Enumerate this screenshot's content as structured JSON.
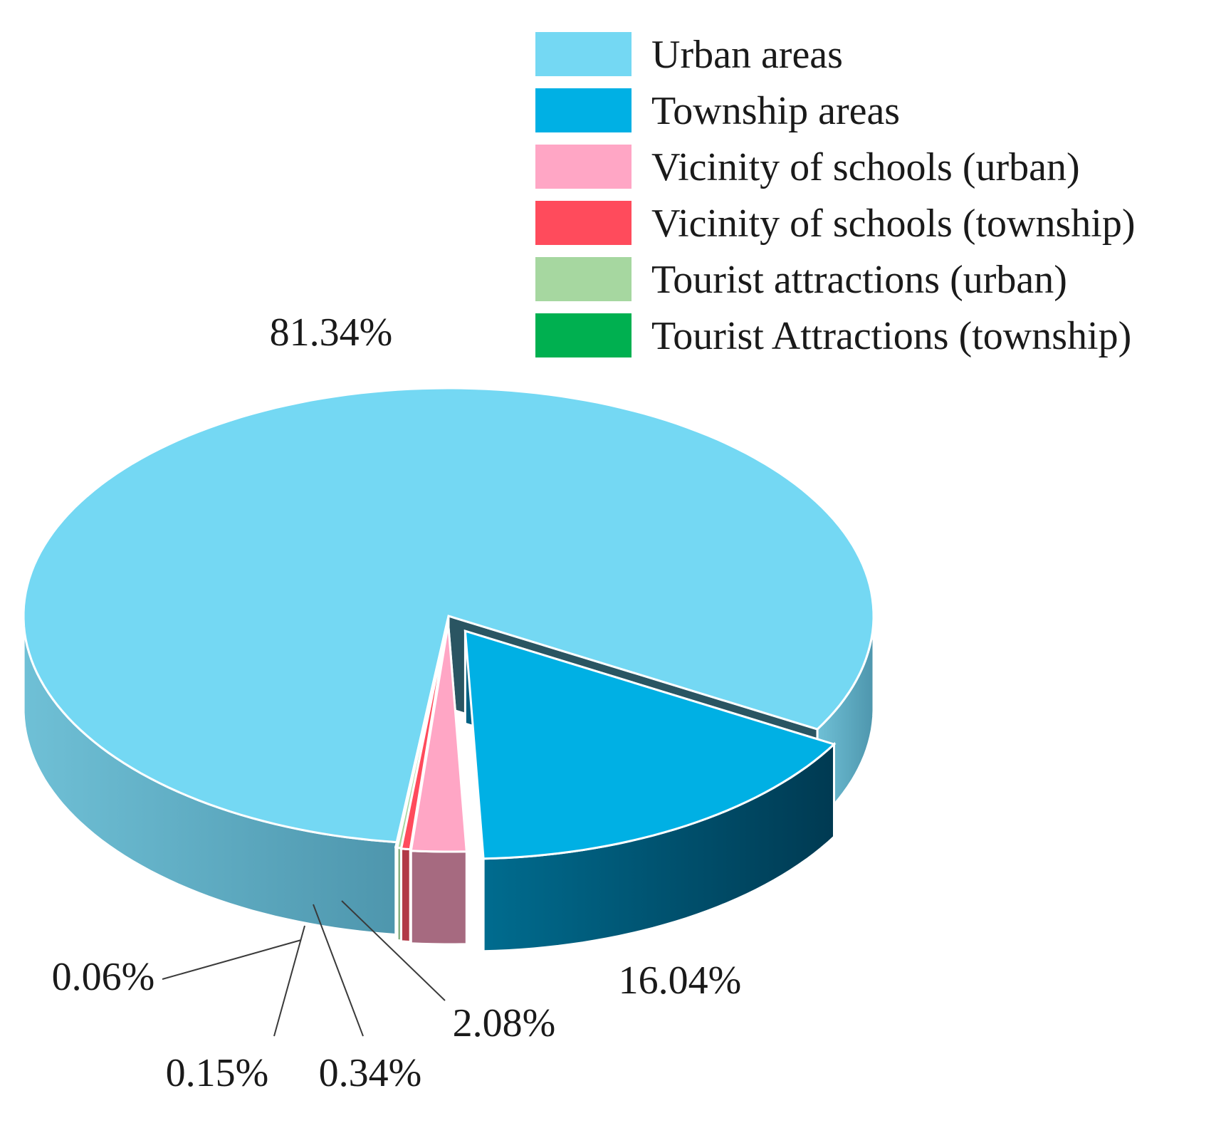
{
  "chart_data": {
    "type": "pie",
    "style": "3d-exploded",
    "categories": [
      "Urban areas",
      "Township areas",
      "Vicinity of schools (urban)",
      "Vicinity of schools (township)",
      "Tourist attractions (urban)",
      "Tourist Attractions (township)"
    ],
    "values": [
      81.34,
      16.04,
      2.08,
      0.34,
      0.15,
      0.06
    ],
    "value_labels": [
      "81.34%",
      "16.04%",
      "2.08%",
      "0.34%",
      "0.15%",
      "0.06%"
    ],
    "colors": [
      "#74d8f3",
      "#00b0e4",
      "#ffa6c5",
      "#ff4b5c",
      "#a6d7a0",
      "#00b050"
    ],
    "side_colors": [
      "#5aaac2",
      "#006284",
      "#a66a80",
      "#b23a47",
      "#86b081",
      "#00803a"
    ],
    "legend_position": "top-right",
    "title": "",
    "xlabel": "",
    "ylabel": ""
  }
}
